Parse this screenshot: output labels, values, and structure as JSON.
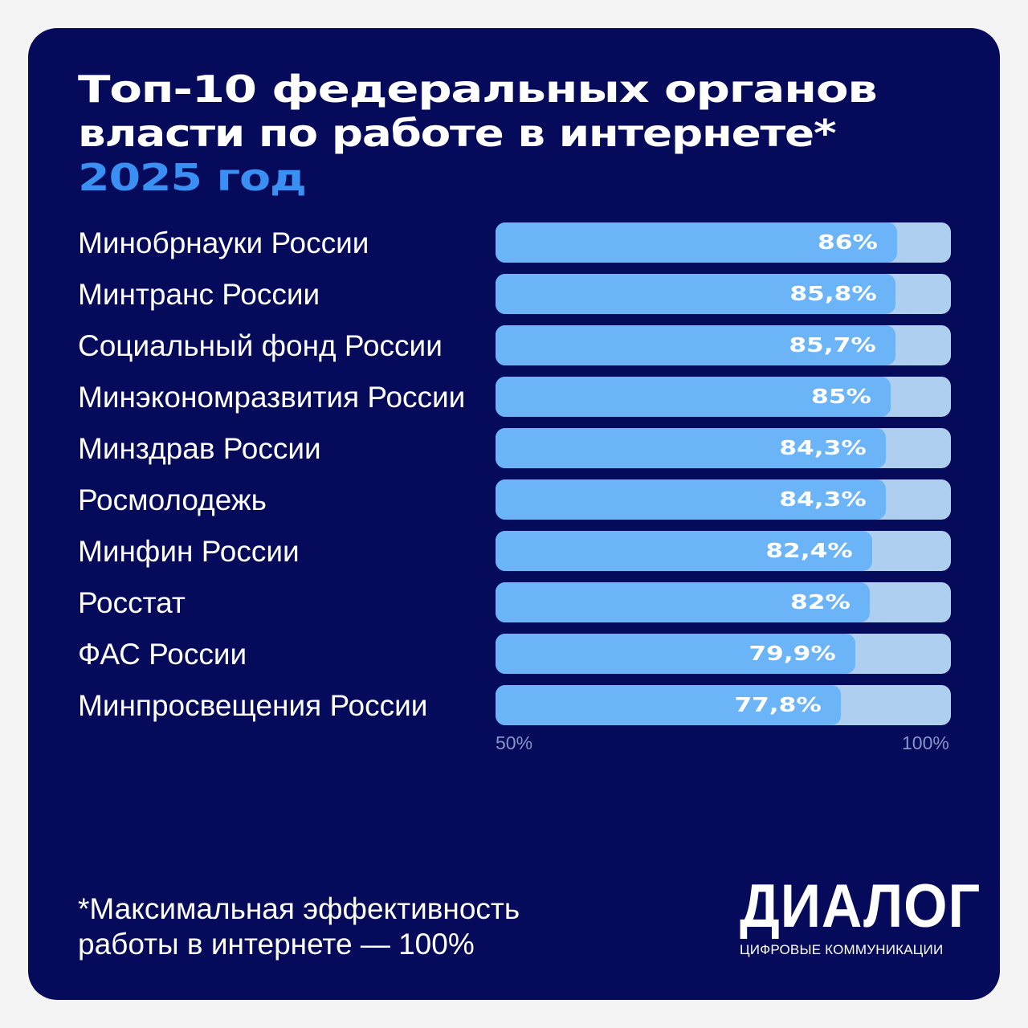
{
  "title": {
    "line1": "Топ-10 федеральных органов",
    "line2": "власти по работе в интернете*",
    "line3": "2025 год"
  },
  "chart_data": {
    "type": "bar",
    "orientation": "horizontal",
    "categories": [
      "Минобрнауки России",
      "Минтранс России",
      "Социальный фонд России",
      "Минэкономразвития России",
      "Минздрав России",
      "Росмолодежь",
      "Минфин России",
      "Росстат",
      "ФАС России",
      "Минпросвещения России"
    ],
    "values": [
      86,
      85.8,
      85.7,
      85,
      84.3,
      84.3,
      82.4,
      82,
      79.9,
      77.8
    ],
    "value_labels": [
      "86%",
      "85,8%",
      "85,7%",
      "85%",
      "84,3%",
      "84,3%",
      "82,4%",
      "82%",
      "79,9%",
      "77,8%"
    ],
    "xlim": [
      50,
      100
    ],
    "tick_labels": [
      "50%",
      "100%"
    ],
    "grid": false,
    "colors": {
      "fill": "#6cb4f8",
      "track": "#aecff0",
      "background": "#050b5a",
      "accent": "#3a8ff2"
    }
  },
  "footnote": {
    "line1": "*Максимальная эффективность",
    "line2": "работы в интернете — 100%"
  },
  "logo": {
    "word": "ДИАЛОГ",
    "sub": "ЦИФРОВЫЕ КОММУНИКАЦИИ"
  }
}
